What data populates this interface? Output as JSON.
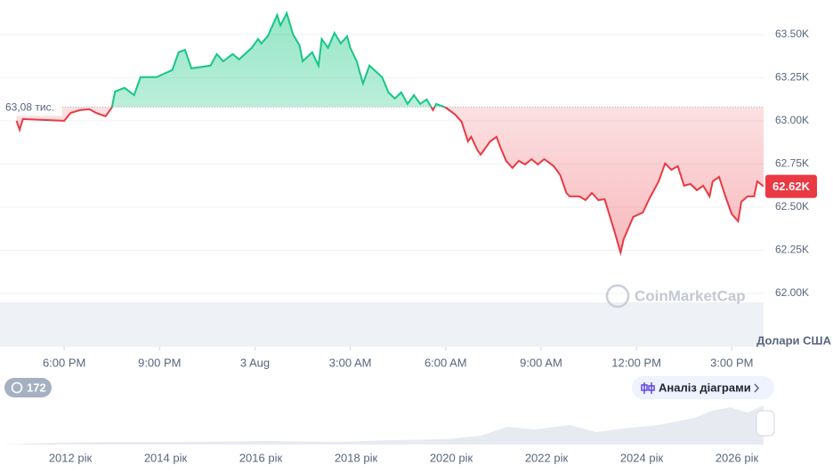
{
  "chart_data": {
    "type": "line",
    "x": [
      -1.5,
      -1.4,
      -1.3,
      0,
      0.2,
      0.5,
      0.8,
      1.0,
      1.3,
      1.5,
      1.6,
      1.9,
      2.2,
      2.4,
      2.9,
      3.4,
      3.6,
      3.8,
      4.0,
      4.6,
      4.8,
      5.0,
      5.3,
      5.5,
      5.9,
      6.1,
      6.2,
      6.4,
      6.7,
      6.8,
      7.0,
      7.2,
      7.4,
      7.5,
      7.8,
      8.0,
      8.1,
      8.3,
      8.5,
      8.7,
      8.9,
      9.0,
      9.2,
      9.4,
      9.6,
      10.0,
      10.2,
      10.4,
      10.6,
      10.8,
      11.0,
      11.2,
      11.4,
      11.6,
      11.7,
      12.0,
      12.3,
      12.5,
      12.7,
      12.8,
      13.0,
      13.1,
      13.4,
      13.6,
      13.7,
      13.9,
      14.1,
      14.3,
      14.5,
      14.7,
      14.9,
      15.1,
      15.4,
      15.6,
      15.8,
      15.9,
      16.2,
      16.4,
      16.6,
      16.8,
      17.0,
      17.3,
      17.5,
      17.6,
      17.9,
      18.2,
      18.4,
      18.7,
      18.9,
      19.1,
      19.3,
      19.5,
      19.7,
      19.9,
      20.1,
      20.3,
      20.4,
      20.6,
      20.8,
      21.0,
      21.2,
      21.3,
      21.5,
      21.7,
      21.8,
      22.0
    ],
    "values": [
      63000,
      62948,
      63010,
      63000,
      63046,
      63062,
      63067,
      63046,
      63026,
      63077,
      63170,
      63191,
      63149,
      63253,
      63253,
      63294,
      63397,
      63412,
      63304,
      63320,
      63387,
      63345,
      63387,
      63356,
      63423,
      63474,
      63448,
      63490,
      63613,
      63552,
      63624,
      63500,
      63438,
      63345,
      63397,
      63320,
      63474,
      63423,
      63510,
      63448,
      63490,
      63423,
      63345,
      63216,
      63320,
      63253,
      63165,
      63129,
      63165,
      63098,
      63149,
      63098,
      63124,
      63062,
      63098,
      63077,
      63036,
      62995,
      62881,
      62907,
      62830,
      62804,
      62881,
      62907,
      62856,
      62768,
      62727,
      62768,
      62747,
      62778,
      62747,
      62778,
      62737,
      62686,
      62582,
      62562,
      62562,
      62541,
      62582,
      62541,
      62546,
      62366,
      62237,
      62314,
      62443,
      62469,
      62546,
      62649,
      62753,
      62716,
      62737,
      62624,
      62634,
      62598,
      62624,
      62562,
      62649,
      62675,
      62562,
      62459,
      62418,
      62531,
      62562,
      62562,
      62649,
      62620
    ],
    "up_color": "#16c784",
    "down_color": "#ea3943",
    "baseline": 63080,
    "baseline_label": "63,08 тис.",
    "last_label": "62.62K",
    "xlim": [
      -2.02,
      22.0
    ],
    "xticks": [
      {
        "value": 0,
        "label": "6:00 PM"
      },
      {
        "value": 3,
        "label": "9:00 PM"
      },
      {
        "value": 6,
        "label": "3 Aug"
      },
      {
        "value": 9,
        "label": "3:00 AM"
      },
      {
        "value": 12,
        "label": "6:00 AM"
      },
      {
        "value": 15,
        "label": "9:00 AM"
      },
      {
        "value": 18,
        "label": "12:00 PM"
      },
      {
        "value": 21,
        "label": "3:00 PM"
      }
    ],
    "ylim": [
      62000,
      63700
    ],
    "yticks": [
      {
        "value": 62000,
        "label": "62.00K"
      },
      {
        "value": 62250,
        "label": "62.25K"
      },
      {
        "value": 62500,
        "label": "62.50K"
      },
      {
        "value": 62750,
        "label": "62.75K"
      },
      {
        "value": 63000,
        "label": "63.00K"
      },
      {
        "value": 63250,
        "label": "63.25K"
      },
      {
        "value": 63500,
        "label": "63.50K"
      }
    ],
    "grid": true,
    "y_axis_label": "Долари США",
    "watermark": "CoinMarketCap",
    "navigator_labels": [
      "2012 рік",
      "2014 рік",
      "2016 рік",
      "2018 рік",
      "2020 рік",
      "2022 рік",
      "2024 рік",
      "2026 рік"
    ]
  },
  "ui": {
    "history_badge": "172",
    "analysis_button": "Аналіз діаграми"
  }
}
